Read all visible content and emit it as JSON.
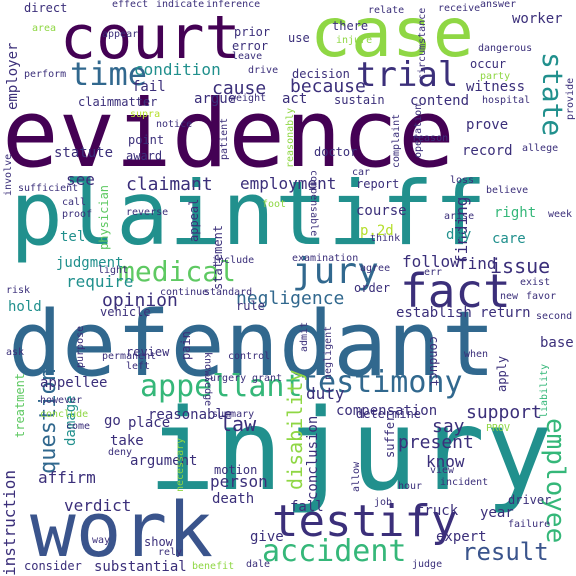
{
  "palette": {
    "purple": "#440154",
    "indigo": "#3b2f7a",
    "blue": "#31688e",
    "steel": "#3a548c",
    "teal": "#21908d",
    "seagreen": "#35b779",
    "green": "#5ec962",
    "lime": "#8fd744",
    "yellowgreen": "#b5de2b",
    "yellow": "#c7e020",
    "lightyellow": "#dde318"
  },
  "words": {
    "evidence": "evidence",
    "plaintiff": "plaintiff",
    "defendant": "defendant",
    "injury": "injury",
    "court": "court",
    "case": "case",
    "work": "work",
    "fact": "fact",
    "testimony": "testimony",
    "testify": "testify",
    "medical": "medical",
    "jury": "jury",
    "time": "time",
    "trial": "trial",
    "accident": "accident",
    "appellant": "appellant",
    "employee": "employee",
    "state": "state",
    "question": "question",
    "disability": "disability",
    "result": "result",
    "negligence": "negligence",
    "opinion": "opinion",
    "claimant": "claimant",
    "employment": "employment",
    "condition": "condition",
    "because": "because",
    "cause": "cause",
    "witness": "witness",
    "support": "support",
    "issue": "issue",
    "find": "find",
    "follow": "follow",
    "require": "require",
    "judgment": "judgment",
    "law": "law",
    "duty": "duty",
    "say": "say",
    "present": "present",
    "know": "know",
    "person": "person",
    "verdict": "verdict",
    "affirm": "affirm",
    "instruction": "instruction",
    "employer": "employer",
    "finding": "finding",
    "right": "right",
    "care": "care",
    "day": "day",
    "hold": "hold",
    "tell": "tell",
    "see": "see",
    "act": "act",
    "argue": "argue",
    "fail": "fail",
    "decision": "decision",
    "sustain": "sustain",
    "contend": "contend",
    "prove": "prove",
    "record": "record",
    "doctor": "doctor",
    "report": "report",
    "course": "course",
    "establish": "establish",
    "return": "return",
    "order": "order",
    "point": "point",
    "award": "award",
    "appeal": "appeal",
    "statement": "statement",
    "reasonable": "reasonable",
    "compensation": "compensation",
    "determine": "determine",
    "suffer": "suffer",
    "conclusion": "conclusion",
    "damage": "damage",
    "review": "review",
    "go": "go",
    "take": "take",
    "place": "place",
    "argument": "argument",
    "death": "death",
    "motion": "motion",
    "fall": "fall",
    "truck": "truck",
    "expert": "expert",
    "year": "year",
    "give": "give",
    "show": "show",
    "substantial": "substantial",
    "consider": "consider",
    "benefit": "benefit",
    "dale": "dale",
    "judge": "judge",
    "driver": "driver",
    "failure": "failure",
    "treatment": "treatment",
    "appellee": "appellee",
    "statute": "statute",
    "claim": "claim",
    "matter": "matter",
    "prior": "prior",
    "error": "error",
    "use": "use",
    "drive": "drive",
    "occur": "occur",
    "party": "party",
    "hospital": "hospital",
    "allege": "allege",
    "believe": "believe",
    "loss": "loss",
    "arise": "arise",
    "week": "week",
    "think": "think",
    "agree": "agree",
    "examination": "examination",
    "include": "include",
    "light": "light",
    "continue": "continue",
    "standard": "standard",
    "rule": "rule",
    "vehicle": "vehicle",
    "risk": "risk",
    "ask": "ask",
    "purpose": "purpose",
    "permanent": "permanent",
    "left": "left",
    "control": "control",
    "surgery": "surgery",
    "grant": "grant",
    "however": "however",
    "conclude": "conclude",
    "summary": "summary",
    "come": "come",
    "deny": "deny",
    "necessary": "necessary",
    "way": "way",
    "rely": "rely",
    "hour": "hour",
    "view": "view",
    "incident": "incident",
    "job": "job",
    "allow": "allow",
    "physician": "physician",
    "pain": "pain",
    "apply": "apply",
    "base": "base",
    "when": "when",
    "second": "second",
    "exist": "exist",
    "new": "new",
    "favor": "favor",
    "liability": "liability",
    "conduct": "conduct",
    "admit": "admit",
    "negligent": "negligent",
    "knowledge": "knowledge",
    "p2d": "p.2d",
    "there": "there",
    "injure": "injure",
    "relate": "relate",
    "receive": "receive",
    "answer": "answer",
    "worker": "worker",
    "circumstance": "circumstance",
    "dangerous": "dangerous",
    "provide": "provide",
    "direct": "direct",
    "effect": "effect",
    "indicate": "indicate",
    "inference": "inference",
    "area": "area",
    "appear": "appear",
    "perform": "perform",
    "leave": "leave",
    "weight": "weight",
    "notice": "notice",
    "patient": "patient",
    "reasonably": "reasonably",
    "complaint": "complaint",
    "operation": "operation",
    "reason": "reason",
    "sufficient": "sufficient",
    "proof": "proof",
    "call": "call",
    "involve": "involve",
    "reverse": "reverse",
    "foot": "foot",
    "car": "car",
    "compensable": "compensable",
    "supra": "supra",
    "prov": "PROV",
    "err": "err"
  }
}
